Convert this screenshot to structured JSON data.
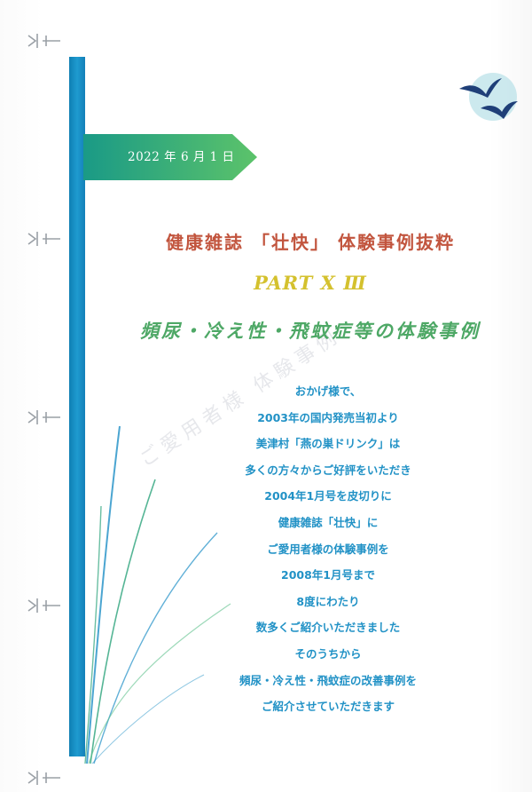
{
  "date": "2022 年 6 月 1 日",
  "title": "健康雑誌 「壮快」 体験事例抜粋",
  "part": "PART X Ⅲ",
  "subtitle": "頻尿・冷え性・飛蚊症等の体験事例",
  "body_lines": [
    "おかげ様で、",
    "2003年の国内発売当初より",
    "美津村「燕の巣ドリンク」は",
    "多くの方々からご好評をいただき",
    "2004年1月号を皮切りに",
    "健康雑誌「壮快」に",
    "ご愛用者様の体験事例を",
    "2008年1月号まで",
    "8度にわたり",
    "数多くご紹介いただきました",
    "そのうちから",
    "頻尿・冷え性・飛蚊症の改善事例を",
    "ご紹介させていただきます"
  ],
  "colors": {
    "bar": "#1e9bd0",
    "ribbon": "#3bb78a",
    "title": "#c2553e",
    "part": "#d4c12e",
    "subtitle": "#4ea866",
    "body": "#2292c6"
  },
  "icons": [
    "swallows-logo-icon",
    "binder-clip-icon"
  ]
}
